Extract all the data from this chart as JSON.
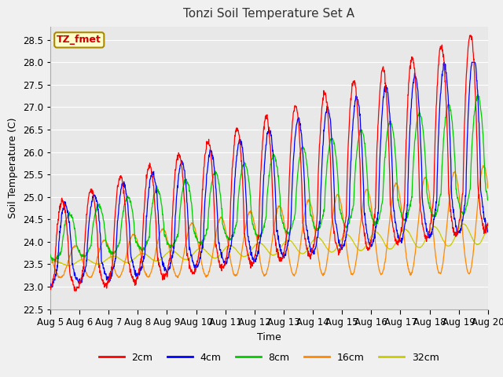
{
  "title": "Tonzi Soil Temperature Set A",
  "xlabel": "Time",
  "ylabel": "Soil Temperature (C)",
  "ylim": [
    22.5,
    28.8
  ],
  "n_days": 15,
  "x_tick_labels": [
    "Aug 5",
    "Aug 6",
    "Aug 7",
    "Aug 8",
    "Aug 9",
    "Aug 10",
    "Aug 11",
    "Aug 12",
    "Aug 13",
    "Aug 14",
    "Aug 15",
    "Aug 16",
    "Aug 17",
    "Aug 18",
    "Aug 19",
    "Aug 20"
  ],
  "colors": {
    "2cm": "#FF0000",
    "4cm": "#0000FF",
    "8cm": "#00CC00",
    "16cm": "#FF8800",
    "32cm": "#CCCC00"
  },
  "legend_labels": [
    "2cm",
    "4cm",
    "8cm",
    "16cm",
    "32cm"
  ],
  "annotation_text": "TZ_fmet",
  "annotation_color": "#CC0000",
  "annotation_bg": "#FFFFCC",
  "plot_bg_color": "#E8E8E8",
  "fig_bg_color": "#F0F0F0",
  "grid_color": "#FFFFFF"
}
